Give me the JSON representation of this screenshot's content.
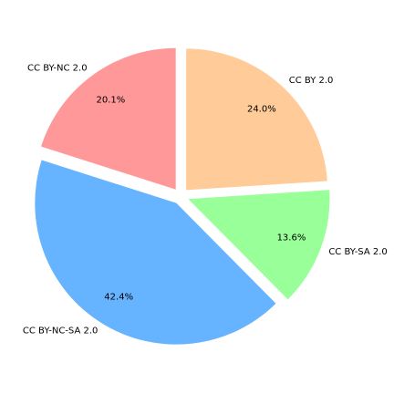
{
  "chart_data": {
    "type": "pie",
    "title": "",
    "start_angle_deg": 90,
    "direction": "counterclockwise",
    "explode": true,
    "slices": [
      {
        "label": "CC BY-NC 2.0",
        "value": 20.1,
        "pct_label": "20.1%",
        "color": "#ff9999"
      },
      {
        "label": "CC BY-NC-SA 2.0",
        "value": 42.4,
        "pct_label": "42.4%",
        "color": "#66b3ff"
      },
      {
        "label": "CC BY-SA 2.0",
        "value": 13.6,
        "pct_label": "13.6%",
        "color": "#99ff99"
      },
      {
        "label": "CC BY 2.0",
        "value": 24.0,
        "pct_label": "24.0%",
        "color": "#ffcc99"
      }
    ]
  }
}
